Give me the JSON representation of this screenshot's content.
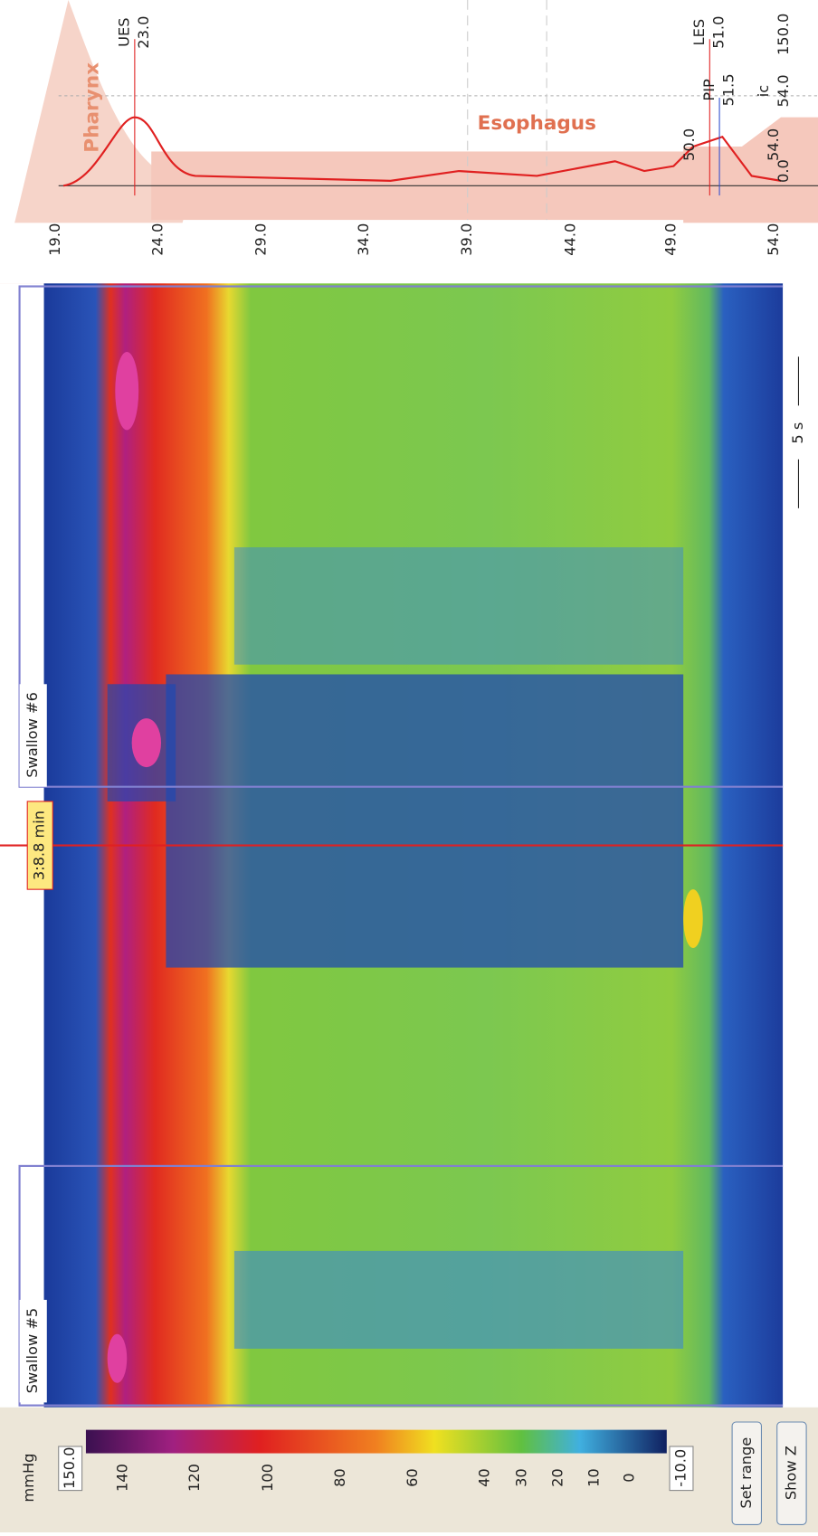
{
  "colorbar": {
    "unit": "mmHg",
    "max": "150.0",
    "min": "-10.0",
    "ticks": [
      "140",
      "120",
      "100",
      "80",
      "60",
      "40",
      "30",
      "20",
      "10",
      "0"
    ]
  },
  "buttons": [
    "Set range",
    "Show Z"
  ],
  "sensors": [
    "19.0",
    "24.0",
    "29.0",
    "34.0",
    "39.0",
    "44.0",
    "49.0",
    "54.0"
  ],
  "regions": [
    "Pharynx",
    "Esophagus"
  ],
  "markers": [
    {
      "label": "UES",
      "value": "23.0"
    },
    {
      "label": "LES",
      "value": "51.0"
    },
    {
      "label": "PIP",
      "value": "51.5"
    },
    {
      "value": "50.0"
    },
    {
      "value": "54.0"
    },
    {
      "label": "ic",
      "value": "54.0"
    }
  ],
  "profile_axis": {
    "max": "150.0",
    "min": "0.0"
  },
  "swallows": [
    "Swallow #5",
    "Swallow #6"
  ],
  "time_cursor": "3:8.8 min",
  "scale_bar": "5 s"
}
